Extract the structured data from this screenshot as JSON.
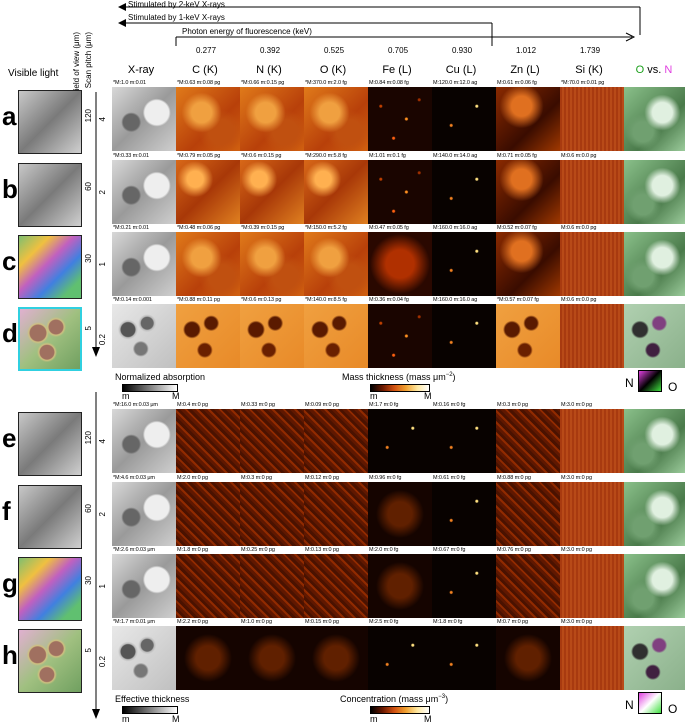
{
  "arrows": {
    "stim_2kev": "Stimulated by 2-keV X-rays",
    "stim_1kev": "Stimulated by 1-keV X-rays",
    "photon_energy": "Photon energy of fluorescence (keV)"
  },
  "energies": [
    "0.277",
    "0.392",
    "0.525",
    "0.705",
    "0.930",
    "1.012",
    "1.739"
  ],
  "axis_labels": {
    "field_of_view": "Field of view (μm)",
    "scan_pitch": "Scan pitch (μm)"
  },
  "visible_light_label": "Visible light",
  "column_headers": [
    "X-ray",
    "C (K)",
    "N (K)",
    "O (K)",
    "Fe (L)",
    "Cu (L)",
    "Zn (L)",
    "Si (K)"
  ],
  "compare_header": {
    "o": "O",
    "vs": " vs. ",
    "n": "N"
  },
  "rows_top": [
    {
      "letter": "a",
      "fov": "120",
      "pitch": "4",
      "captions": [
        "*M:1.0 m:0.01",
        "*M:0.63 m:0.08 pg",
        "*M:0.66 m:0.15 pg",
        "*M:370.0 m:2.0 fg",
        "M:0.84 m:0.08 fg",
        "M:120.0 m:12.0 ag",
        "M:0.61 m:0.06 fg",
        "*M:70.0 m:0.01 pg"
      ]
    },
    {
      "letter": "b",
      "fov": "60",
      "pitch": "2",
      "captions": [
        "*M:0.33 m:0.01",
        "*M:0.79 m:0.05 pg",
        "*M:0.6 m:0.15 pg",
        "*M:290.0 m:5.8 fg",
        "M:1.01 m:0.1 fg",
        "M:140.0 m:14.0 ag",
        "M:0.71 m:0.05 fg",
        "M:0.6 m:0.0 pg"
      ]
    },
    {
      "letter": "c",
      "fov": "30",
      "pitch": "1",
      "captions": [
        "*M:0.21 m:0.01",
        "*M:0.48 m:0.06 pg",
        "*M:0.39 m:0.15 pg",
        "*M:150.0 m:5.2 fg",
        "M:0.47 m:0.05 fg",
        "M:160.0 m:16.0 ag",
        "M:0.52 m:0.07 fg",
        "M:0.6 m:0.0 pg"
      ]
    },
    {
      "letter": "d",
      "fov": "5",
      "pitch": "0.2",
      "captions": [
        "*M:0.14 m:0.001",
        "*M:0.88 m:0.11 pg",
        "*M:0.6 m:0.13 pg",
        "*M:140.0 m:8.5 fg",
        "M:0.36 m:0.04 fg",
        "M:160.0 m:16.0 ag",
        "*M:0.57 m:0.07 fg",
        "M:0.6 m:0.0 pg"
      ]
    }
  ],
  "rows_bottom": [
    {
      "letter": "e",
      "fov": "120",
      "pitch": "4",
      "captions": [
        "*M:16.0 m:0.03 μm",
        "M:0.4 m:0 pg",
        "M:0.33 m:0 pg",
        "M:0.09 m:0 pg",
        "M:1.7 m:0 fg",
        "M:0.16 m:0 fg",
        "M:0.3 m:0 pg",
        "M:3.0 m:0 pg"
      ]
    },
    {
      "letter": "f",
      "fov": "60",
      "pitch": "2",
      "captions": [
        "*M:4.6 m:0.03 μm",
        "M:2.0 m:0 pg",
        "M:0.3 m:0 pg",
        "M:0.12 m:0 pg",
        "M:0.96 m:0 fg",
        "M:0.61 m:0 fg",
        "M:0.88 m:0 pg",
        "M:3.0 m:0 pg"
      ]
    },
    {
      "letter": "g",
      "fov": "30",
      "pitch": "1",
      "captions": [
        "*M:2.6 m:0.03 μm",
        "M:1.8 m:0 pg",
        "M:0.25 m:0 pg",
        "M:0.13 m:0 pg",
        "M:2.0 m:0 fg",
        "M:0.67 m:0 fg",
        "M:0.76 m:0 pg",
        "M:3.0 m:0 pg"
      ]
    },
    {
      "letter": "h",
      "fov": "5",
      "pitch": "0.2",
      "captions": [
        "*M:1.7 m:0.01 μm",
        "M:2.2 m:0 pg",
        "M:1.0 m:0 pg",
        "M:0.15 m:0 pg",
        "M:2.5 m:0 fg",
        "M:1.8 m:0 fg",
        "M:0.7 m:0 pg",
        "M:3.0 m:0 pg"
      ]
    }
  ],
  "legends_top": {
    "absorption": "Normalized absorption",
    "mass": "Mass thickness (mass μm",
    "mass_exp": "−2",
    "mass_close": ")",
    "m": "m",
    "M": "M",
    "n": "N",
    "o": "O"
  },
  "legends_bottom": {
    "thickness": "Effective thickness",
    "conc": "Concentration (mass μm",
    "conc_exp": "−3",
    "conc_close": ")",
    "m": "m",
    "M": "M",
    "n": "N",
    "o": "O"
  },
  "colors": {
    "green_label": "#1ca01c",
    "magenta_label": "#e040e0",
    "highlight_border": "#30d0e0"
  }
}
